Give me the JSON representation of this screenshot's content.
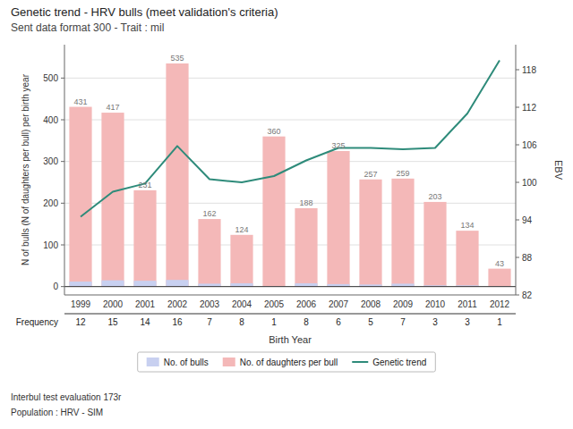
{
  "chart_data": {
    "type": "bar",
    "title": "Genetic trend - HRV bulls (meet validation's criteria)",
    "subtitle": "Sent data format 300 - Trait : mil",
    "x_label": "Birth Year",
    "y_label": "N of bulls (N of daughters per bull) per birth year",
    "y2_label": "EBV",
    "categories": [
      "1999",
      "2000",
      "2001",
      "2002",
      "2003",
      "2004",
      "2005",
      "2006",
      "2007",
      "2008",
      "2009",
      "2010",
      "2011",
      "2012"
    ],
    "series": [
      {
        "name": "No. of bulls",
        "type": "bar",
        "color": "#c8d0f0",
        "values": [
          12,
          15,
          14,
          16,
          7,
          8,
          1,
          8,
          6,
          5,
          7,
          3,
          3,
          1
        ]
      },
      {
        "name": "No. of daughters per bull",
        "type": "bar",
        "color": "#f4b8b8",
        "data_labels": true,
        "values": [
          431,
          417,
          231,
          535,
          162,
          124,
          360,
          188,
          325,
          257,
          259,
          203,
          134,
          43
        ]
      },
      {
        "name": "Genetic trend",
        "type": "line",
        "axis": "y2",
        "color": "#2e8b7a",
        "values": [
          94.5,
          98.5,
          99.8,
          105.8,
          100.5,
          100.0,
          101.0,
          103.5,
          105.5,
          105.5,
          105.3,
          105.5,
          111.0,
          119.5
        ]
      }
    ],
    "ylim": [
      -20,
      580
    ],
    "yticks": [
      0,
      100,
      200,
      300,
      400,
      500
    ],
    "y2lim": [
      82,
      122
    ],
    "y2ticks": [
      82,
      88,
      94,
      100,
      106,
      112,
      118
    ],
    "grid": true,
    "legend": "bottom",
    "frequency": {
      "label": "Frequency",
      "values": [
        12,
        15,
        14,
        16,
        7,
        8,
        1,
        8,
        6,
        5,
        7,
        3,
        3,
        1
      ]
    },
    "annotations": [
      "Interbul test evaluation 173r",
      "Population : HRV - SIM"
    ]
  }
}
